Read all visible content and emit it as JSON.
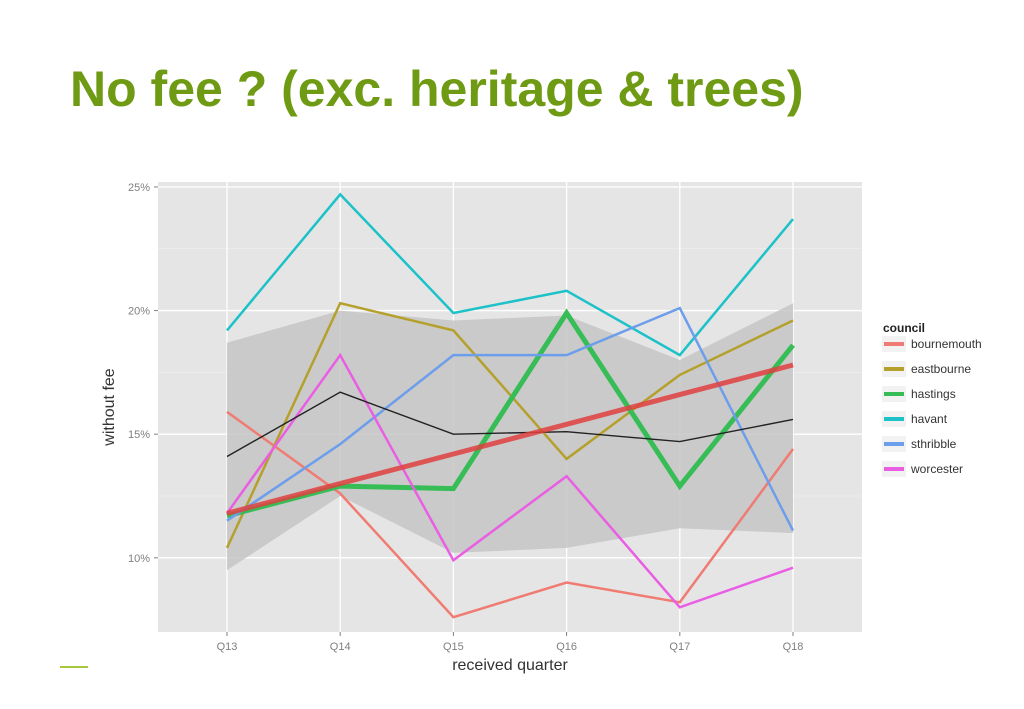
{
  "slide": {
    "title": "No fee ? (exc. heritage & trees)"
  },
  "colors": {
    "title": "#6f9a14",
    "panel": "#e5e5e5",
    "ribbon": "#c6c6c6",
    "trend": "#e03f3f",
    "mean": "#222222",
    "footer_rule": "#a8c83c"
  },
  "chart_data": {
    "type": "line",
    "xlabel": "received quarter",
    "ylabel": "without fee",
    "x": [
      "Q13",
      "Q14",
      "Q15",
      "Q16",
      "Q17",
      "Q18"
    ],
    "ylim": [
      0.07,
      0.252
    ],
    "yticks": [
      0.1,
      0.15,
      0.2,
      0.25
    ],
    "ytick_labels": [
      "10%",
      "15%",
      "20%",
      "25%"
    ],
    "grid": true,
    "legend": {
      "title": "council",
      "position": "right"
    },
    "series": [
      {
        "name": "bournemouth",
        "color": "#f07b72",
        "width": 2.5,
        "values": [
          0.159,
          0.126,
          0.076,
          0.09,
          0.082,
          0.144
        ]
      },
      {
        "name": "eastbourne",
        "color": "#b5a02c",
        "width": 2.5,
        "values": [
          0.104,
          0.203,
          0.192,
          0.14,
          0.174,
          0.196
        ]
      },
      {
        "name": "hastings",
        "color": "#37bd55",
        "width": 5,
        "values": [
          0.117,
          0.129,
          0.128,
          0.199,
          0.129,
          0.186
        ]
      },
      {
        "name": "havant",
        "color": "#1cc2c8",
        "width": 2.5,
        "values": [
          0.192,
          0.247,
          0.199,
          0.208,
          0.182,
          0.237
        ]
      },
      {
        "name": "sthribble",
        "color": "#6d9eeb",
        "width": 2.5,
        "values": [
          0.115,
          0.146,
          0.182,
          0.182,
          0.201,
          0.111
        ]
      },
      {
        "name": "worcester",
        "color": "#ea5ee4",
        "width": 2.5,
        "values": [
          0.118,
          0.182,
          0.099,
          0.133,
          0.08,
          0.096
        ]
      }
    ],
    "mean_line": {
      "values": [
        0.141,
        0.167,
        0.15,
        0.151,
        0.147,
        0.156
      ]
    },
    "trend_line": {
      "values": [
        0.118,
        0.13,
        0.142,
        0.154,
        0.166,
        0.178
      ]
    },
    "ribbon": {
      "upper": [
        0.187,
        0.2,
        0.196,
        0.198,
        0.18,
        0.203
      ],
      "lower": [
        0.095,
        0.125,
        0.102,
        0.104,
        0.112,
        0.11
      ]
    }
  }
}
